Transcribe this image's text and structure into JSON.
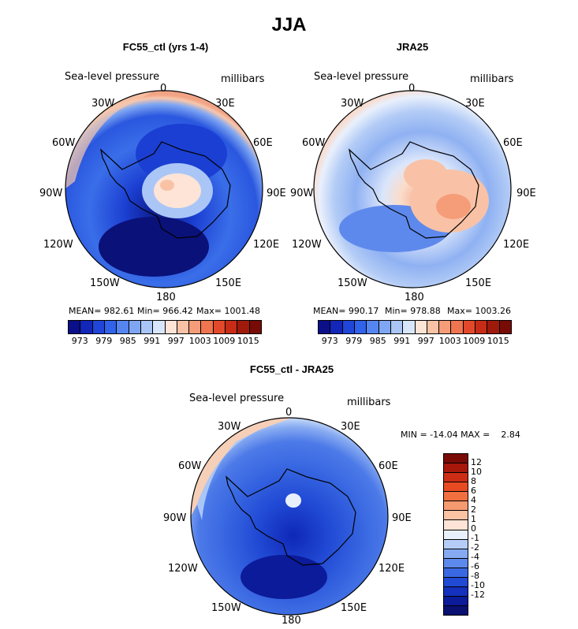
{
  "figure": {
    "title": "JJA"
  },
  "panels": [
    {
      "title": "FC55_ctl (yrs 1-4)",
      "variable": "Sea-level pressure",
      "units": "millibars",
      "stats": {
        "mean": "MEAN= 982.61",
        "min": "Min= 966.42",
        "max": "Max= 1001.48"
      },
      "lon_labels": [
        "0",
        "30E",
        "60E",
        "90E",
        "120E",
        "150E",
        "180",
        "150W",
        "120W",
        "90W",
        "60W",
        "30W"
      ]
    },
    {
      "title": "JRA25",
      "variable": "Sea-level pressure",
      "units": "millibars",
      "stats": {
        "mean": "MEAN= 990.17",
        "min": "Min= 978.88",
        "max": "Max= 1003.26"
      },
      "lon_labels": [
        "0",
        "30E",
        "60E",
        "90E",
        "120E",
        "150E",
        "180",
        "150W",
        "120W",
        "90W",
        "60W",
        "30W"
      ]
    },
    {
      "title": "FC55_ctl - JRA25",
      "variable": "Sea-level pressure",
      "units": "millibars",
      "stats_line": "MIN = -14.04 MAX =    2.84",
      "lon_labels": [
        "0",
        "30E",
        "60E",
        "90E",
        "120E",
        "150E",
        "180",
        "150W",
        "120W",
        "90W",
        "60W",
        "30W"
      ]
    }
  ],
  "colorbar_abs": {
    "colors": [
      "#0b0f8a",
      "#1226b8",
      "#1f45d9",
      "#3062ea",
      "#5585ef",
      "#7fa6f2",
      "#aac6f6",
      "#d8e6fb",
      "#fde4d6",
      "#f9c2a6",
      "#f59c78",
      "#ef7450",
      "#e2492a",
      "#c72c17",
      "#a01a0c",
      "#780b05"
    ],
    "tick_labels": [
      "973",
      "979",
      "985",
      "991",
      "997",
      "1003",
      "1009",
      "1015"
    ]
  },
  "colorbar_diff": {
    "colors": [
      "#7a0a06",
      "#a8170b",
      "#cd2d15",
      "#e84a22",
      "#f2703f",
      "#f69a70",
      "#f9c3a4",
      "#fde4d6",
      "#e8f0fb",
      "#b5cdf6",
      "#86aaf1",
      "#5e89ec",
      "#3968e2",
      "#2049d4",
      "#1530bc",
      "#0b1b9a",
      "#0a0f72"
    ],
    "tick_labels": [
      "12",
      "10",
      "8",
      "6",
      "4",
      "2",
      "1",
      "0",
      "-1",
      "-2",
      "-4",
      "-6",
      "-8",
      "-10",
      "-12"
    ]
  },
  "map": {
    "projection": "South polar stereographic",
    "land": "Antarctica"
  }
}
